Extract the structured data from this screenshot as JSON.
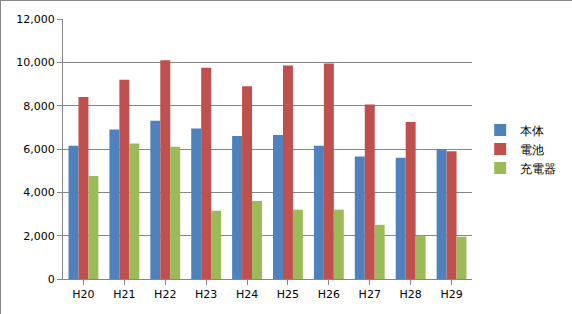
{
  "chart_data": {
    "type": "bar",
    "categories": [
      "H20",
      "H21",
      "H22",
      "H23",
      "H24",
      "H25",
      "H26",
      "H27",
      "H28",
      "H29"
    ],
    "series": [
      {
        "name": "本体",
        "color": "#4f81bd",
        "values": [
          6150,
          6900,
          7300,
          6950,
          6600,
          6650,
          6150,
          5650,
          5600,
          6000
        ]
      },
      {
        "name": "電池",
        "color": "#c0504d",
        "values": [
          8400,
          9200,
          10100,
          9750,
          8900,
          9850,
          9950,
          8050,
          7250,
          5900
        ]
      },
      {
        "name": "充電器",
        "color": "#9bbb59",
        "values": [
          4750,
          6250,
          6100,
          3150,
          3600,
          3200,
          3200,
          2500,
          2000,
          1950
        ]
      }
    ],
    "ylim": [
      0,
      12000
    ],
    "yticks": [
      0,
      {
        "value": 2000,
        "label": "2,000"
      },
      {
        "value": 4000,
        "label": "4,000"
      },
      {
        "value": 6000,
        "label": "6,000"
      },
      {
        "value": 8000,
        "label": "8,000"
      },
      {
        "value": 10000,
        "label": "10,000"
      },
      {
        "value": 12000,
        "label": "12,000"
      }
    ],
    "grid": true,
    "legend": "right"
  }
}
